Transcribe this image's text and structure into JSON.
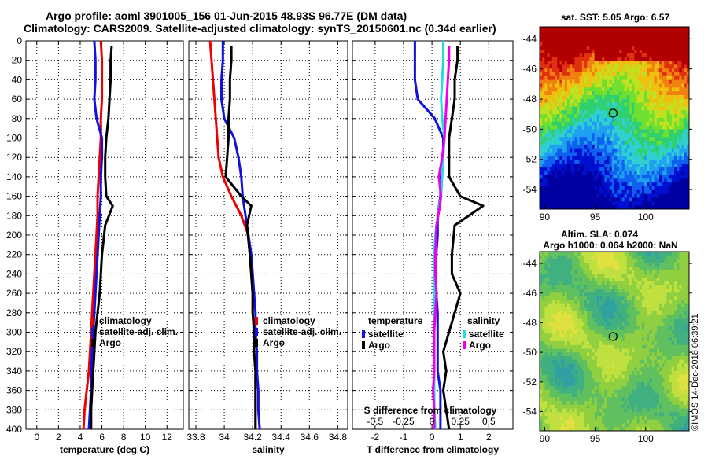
{
  "header": {
    "line1": "Argo profile: aoml 3901005_156 01-Jun-2015 48.93S 96.77E (DM data)",
    "line2": "Climatology: CARS2009. Satellite-adjusted climatology: synTS_20150601.nc (0.34d earlier)"
  },
  "depth_axis": {
    "ticks": [
      0,
      20,
      40,
      60,
      80,
      100,
      120,
      140,
      160,
      180,
      200,
      220,
      240,
      260,
      280,
      300,
      320,
      340,
      360,
      380,
      400
    ]
  },
  "colors": {
    "black": "#000000",
    "red": "#ee0000",
    "blue": "#1111dd",
    "cyan": "#22dddd",
    "magenta": "#ee00ee"
  },
  "chart_data": [
    {
      "type": "line",
      "panel": "temperature",
      "xlabel": "temperature (deg C)",
      "ylabel": "",
      "xlim": [
        -1,
        13.5
      ],
      "ylim": [
        400,
        0
      ],
      "xticks": [
        "0",
        "2",
        "4",
        "6",
        "8",
        "10",
        "12"
      ],
      "xtick_values": [
        0,
        2,
        4,
        6,
        8,
        10,
        12
      ],
      "legend": [
        "climatology",
        "satellite-adj. clim.",
        "Argo"
      ],
      "series": [
        {
          "name": "climatology",
          "color": "#ee0000",
          "x": [
            5.9,
            6.0,
            6.0,
            6.0,
            5.9,
            5.9,
            5.8,
            5.7,
            5.6,
            5.6,
            5.5,
            5.4,
            5.3,
            5.2,
            5.1,
            5.0,
            4.9,
            4.8,
            4.6,
            4.4,
            4.3
          ],
          "y": [
            0,
            20,
            40,
            60,
            80,
            100,
            120,
            140,
            160,
            180,
            200,
            220,
            240,
            260,
            280,
            300,
            320,
            340,
            360,
            380,
            400
          ]
        },
        {
          "name": "satellite-adj. clim.",
          "color": "#1111dd",
          "x": [
            5.3,
            5.4,
            5.4,
            5.3,
            5.5,
            6.0,
            6.0,
            5.9,
            5.9,
            5.8,
            5.7,
            5.6,
            5.5,
            5.4,
            5.3,
            5.2,
            5.1,
            5.0,
            5.0,
            4.9,
            4.8
          ],
          "y": [
            0,
            20,
            40,
            60,
            80,
            100,
            120,
            140,
            160,
            180,
            200,
            220,
            240,
            260,
            280,
            300,
            320,
            340,
            360,
            380,
            400
          ]
        },
        {
          "name": "Argo",
          "color": "#000000",
          "x": [
            6.9,
            6.8,
            6.8,
            6.7,
            6.6,
            6.4,
            6.3,
            6.3,
            6.4,
            7.0,
            6.3,
            6.0,
            5.9,
            5.8,
            5.6,
            5.4,
            5.3,
            5.2,
            5.1,
            5.0,
            5.0
          ],
          "y": [
            5,
            20,
            40,
            60,
            80,
            100,
            120,
            140,
            160,
            170,
            190,
            220,
            240,
            260,
            280,
            300,
            320,
            340,
            360,
            380,
            400
          ]
        }
      ]
    },
    {
      "type": "line",
      "panel": "salinity",
      "xlabel": "salinity",
      "ylabel": "",
      "xlim": [
        33.75,
        34.87
      ],
      "ylim": [
        400,
        0
      ],
      "xticks": [
        "33.8",
        "34",
        "34.2",
        "34.4",
        "34.6",
        "34.8"
      ],
      "xtick_values": [
        33.8,
        34.0,
        34.2,
        34.4,
        34.6,
        34.8
      ],
      "legend": [
        "climatology",
        "satellite-adj. clim.",
        "Argo"
      ],
      "series": [
        {
          "name": "climatology",
          "color": "#ee0000",
          "x": [
            33.9,
            33.91,
            33.92,
            33.93,
            33.94,
            33.95,
            33.96,
            33.99,
            34.05,
            34.12,
            34.17,
            34.18,
            34.19,
            34.2,
            34.2,
            34.21,
            34.21,
            34.22,
            34.22,
            34.22,
            34.22
          ],
          "y": [
            0,
            20,
            40,
            60,
            80,
            100,
            120,
            140,
            160,
            180,
            200,
            220,
            240,
            260,
            280,
            300,
            320,
            340,
            360,
            380,
            400
          ]
        },
        {
          "name": "satellite-adj. clim.",
          "color": "#1111dd",
          "x": [
            33.99,
            33.99,
            33.98,
            33.98,
            34.0,
            34.07,
            34.1,
            34.12,
            34.13,
            34.15,
            34.17,
            34.19,
            34.2,
            34.21,
            34.22,
            34.22,
            34.23,
            34.23,
            34.24,
            34.24,
            34.25
          ],
          "y": [
            0,
            20,
            40,
            60,
            80,
            100,
            120,
            140,
            160,
            180,
            200,
            220,
            240,
            260,
            280,
            300,
            320,
            340,
            360,
            380,
            400
          ]
        },
        {
          "name": "Argo",
          "color": "#000000",
          "x": [
            34.05,
            34.05,
            34.04,
            34.04,
            34.03,
            34.03,
            34.02,
            34.01,
            34.12,
            34.19,
            34.16,
            34.18,
            34.19,
            34.2,
            34.2,
            34.21,
            34.21,
            34.22,
            34.22,
            34.22,
            34.22
          ],
          "y": [
            5,
            20,
            40,
            60,
            80,
            100,
            120,
            140,
            160,
            170,
            190,
            220,
            240,
            260,
            280,
            300,
            320,
            340,
            360,
            380,
            400
          ]
        }
      ]
    },
    {
      "type": "line",
      "panel": "difference",
      "xlabel": "T difference from climatology",
      "ylabel": "",
      "xlim": [
        -2.8,
        2.85
      ],
      "ylim": [
        400,
        0
      ],
      "xticks": [
        "-2",
        "-1",
        "0",
        "1",
        "2"
      ],
      "xtick_values": [
        -2,
        -1,
        0,
        1,
        2
      ],
      "top_axis_label": "S difference from climatology",
      "top_ticks": [
        "-0.5",
        "-0.25",
        "0",
        "0.25",
        "0.5"
      ],
      "top_tick_values": [
        -0.5,
        -0.25,
        0,
        0.25,
        0.5
      ],
      "legend_temperature_title": "temperature",
      "legend_salinity_title": "salinity",
      "legend_temperature": [
        "satellite",
        "Argo"
      ],
      "legend_salinity": [
        "satellite",
        "Argo"
      ],
      "series": [
        {
          "name": "temperature satellite",
          "color": "#1111dd",
          "units": "T",
          "x": [
            -0.6,
            -0.6,
            -0.6,
            -0.5,
            0.1,
            0.4,
            0.4,
            0.3,
            0.3,
            0.2,
            0.2,
            0.15,
            0.15,
            0.15,
            0.2,
            0.2,
            0.2,
            0.2,
            0.3,
            0.3,
            0.3
          ],
          "y": [
            0,
            20,
            40,
            60,
            80,
            100,
            120,
            140,
            160,
            180,
            200,
            220,
            240,
            260,
            280,
            300,
            320,
            340,
            360,
            380,
            400
          ]
        },
        {
          "name": "temperature Argo",
          "color": "#000000",
          "units": "T",
          "x": [
            0.9,
            0.9,
            0.8,
            0.8,
            0.7,
            0.6,
            0.6,
            0.6,
            1.0,
            1.8,
            0.8,
            0.7,
            0.7,
            1.0,
            0.8,
            0.6,
            0.4,
            0.5,
            0.4,
            0.5,
            0.6
          ],
          "y": [
            5,
            20,
            40,
            60,
            80,
            100,
            120,
            140,
            160,
            170,
            190,
            220,
            240,
            260,
            280,
            300,
            320,
            340,
            360,
            380,
            400
          ]
        },
        {
          "name": "salinity satellite",
          "color": "#22dddd",
          "units": "S",
          "x": [
            0.1,
            0.1,
            0.09,
            0.08,
            0.09,
            0.11,
            0.1,
            0.09,
            0.08,
            0.05,
            0.03,
            0.02,
            0.02,
            0.02,
            0.02,
            0.02,
            0.02,
            0.02,
            0.02,
            0.02,
            0.03
          ],
          "y": [
            0,
            20,
            40,
            60,
            80,
            100,
            120,
            140,
            160,
            180,
            200,
            220,
            240,
            260,
            280,
            300,
            320,
            340,
            360,
            380,
            400
          ]
        },
        {
          "name": "salinity Argo",
          "color": "#ee00ee",
          "units": "S",
          "x": [
            0.15,
            0.15,
            0.14,
            0.13,
            0.12,
            0.11,
            0.09,
            0.06,
            0.08,
            0.07,
            0.04,
            0.03,
            0.03,
            0.04,
            0.03,
            0.02,
            0.02,
            0.02,
            0.01,
            0.02,
            0.02
          ],
          "y": [
            5,
            20,
            40,
            60,
            80,
            100,
            120,
            140,
            160,
            170,
            190,
            220,
            240,
            260,
            280,
            300,
            320,
            340,
            360,
            380,
            400
          ]
        }
      ]
    },
    {
      "type": "heatmap",
      "panel": "sst_map",
      "title": "sat. SST: 5.05 Argo: 6.57",
      "xticks": [
        "90",
        "95",
        "100"
      ],
      "xtick_values": [
        90,
        95,
        100
      ],
      "yticks": [
        "-44",
        "-46",
        "-48",
        "-50",
        "-52",
        "-54"
      ],
      "ytick_values": [
        -44,
        -46,
        -48,
        -50,
        -52,
        -54
      ],
      "xlim": [
        89.5,
        104.3
      ],
      "ylim": [
        -55.3,
        -43.2
      ],
      "marker": {
        "lon": 96.77,
        "lat": -48.93
      }
    },
    {
      "type": "heatmap",
      "panel": "sla_map",
      "title": "Altim. SLA: 0.074",
      "subtitle": "Argo h1000: 0.064 h2000: NaN",
      "xticks": [
        "90",
        "95",
        "100"
      ],
      "xtick_values": [
        90,
        95,
        100
      ],
      "yticks": [
        "-44",
        "-46",
        "-48",
        "-50",
        "-52",
        "-54"
      ],
      "ytick_values": [
        -44,
        -46,
        -48,
        -50,
        -52,
        -54
      ],
      "xlim": [
        89.5,
        104.3
      ],
      "ylim": [
        -55.3,
        -43.2
      ],
      "marker": {
        "lon": 96.77,
        "lat": -48.93
      }
    }
  ],
  "stamp": "©IMOS 14-Dec-2018 06:39:21"
}
